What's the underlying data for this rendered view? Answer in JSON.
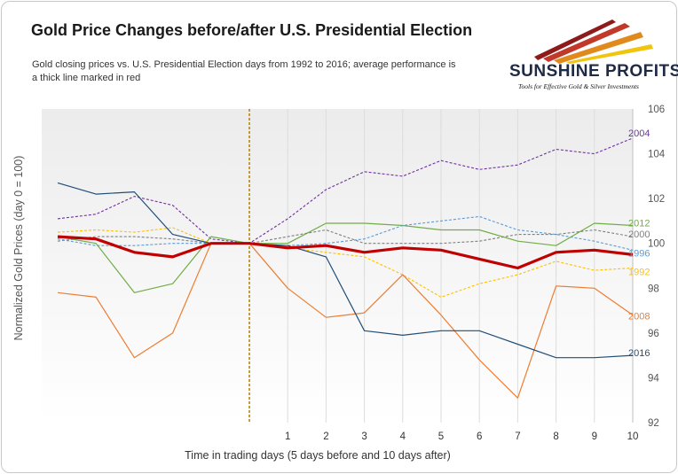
{
  "title": "Gold Price Changes before/after U.S. Presidential Election",
  "subtitle": "Gold closing prices vs. U.S. Presidential Election days from 1992 to 2016; average performance is a thick line marked in red",
  "logo": {
    "name": "SUNSHINE PROFITS",
    "tagline": "Tools for Effective Gold & Silver Investments",
    "icon": "sunshine-profits-logo"
  },
  "colors": {
    "average": "#c00000",
    "marker": "#b8860b"
  },
  "chart_data": {
    "type": "line",
    "title": "Gold Price Changes before/after U.S. Presidential Election",
    "xlabel": "Time in trading days (5 days before and 10 days after)",
    "ylabel": "Normalized Gold Prices (day 0 = 100)",
    "x": [
      -5,
      -4,
      -3,
      -2,
      -1,
      0,
      1,
      2,
      3,
      4,
      5,
      6,
      7,
      8,
      9,
      10
    ],
    "x_tick_labels": [
      "",
      "",
      "",
      "",
      "",
      "",
      "1",
      "2",
      "3",
      "4",
      "5",
      "6",
      "7",
      "8",
      "9",
      "10"
    ],
    "ylim": [
      92,
      106
    ],
    "y_ticks": [
      92,
      94,
      96,
      98,
      100,
      102,
      104,
      106
    ],
    "y_axis_side": "right",
    "grid": "vertical",
    "marker_line_x": 0,
    "series": [
      {
        "name": "2004",
        "color": "#7030a0",
        "style": "dashed",
        "label_at_end": true,
        "values": [
          101.1,
          101.3,
          102.1,
          101.7,
          100.2,
          100.0,
          101.1,
          102.4,
          103.2,
          103.0,
          103.7,
          103.3,
          103.5,
          104.2,
          104.0,
          104.7
        ]
      },
      {
        "name": "2012",
        "color": "#70ad47",
        "style": "solid",
        "label_at_end": true,
        "values": [
          100.3,
          100.0,
          97.8,
          98.2,
          100.3,
          100.0,
          100.0,
          100.9,
          100.9,
          100.8,
          100.6,
          100.6,
          100.1,
          99.9,
          100.9,
          100.8
        ]
      },
      {
        "name": "2000",
        "color": "#7f7f7f",
        "style": "dashed",
        "label_at_end": true,
        "values": [
          100.1,
          100.3,
          100.3,
          100.2,
          100.0,
          100.0,
          100.3,
          100.6,
          100.0,
          100.0,
          100.0,
          100.1,
          100.4,
          100.4,
          100.6,
          100.3
        ]
      },
      {
        "name": "1996",
        "color": "#5b9bd5",
        "style": "dashed",
        "label_at_end": true,
        "values": [
          100.2,
          99.9,
          99.9,
          100.0,
          100.0,
          100.0,
          99.9,
          100.0,
          100.2,
          100.8,
          101.0,
          101.2,
          100.6,
          100.4,
          100.1,
          99.7
        ]
      },
      {
        "name": "1992",
        "color": "#ffc000",
        "style": "dashed",
        "label_at_end": true,
        "values": [
          100.5,
          100.6,
          100.5,
          100.7,
          100.0,
          100.0,
          99.8,
          99.6,
          99.4,
          98.6,
          97.6,
          98.2,
          98.6,
          99.2,
          98.8,
          98.9
        ]
      },
      {
        "name": "2008",
        "color": "#ed7d31",
        "style": "solid",
        "label_at_end": true,
        "values": [
          97.8,
          97.6,
          94.9,
          96.0,
          100.0,
          100.0,
          98.0,
          96.7,
          96.9,
          98.6,
          96.8,
          94.8,
          93.1,
          98.1,
          98.0,
          96.8
        ]
      },
      {
        "name": "2016",
        "color": "#1f4e79",
        "style": "solid",
        "label_at_end": true,
        "values": [
          102.7,
          102.2,
          102.3,
          100.4,
          100.0,
          100.0,
          99.9,
          99.4,
          96.1,
          95.9,
          96.1,
          96.1,
          95.5,
          94.9,
          94.9,
          95.0
        ]
      },
      {
        "name": "",
        "color": "#c00000",
        "style": "thick",
        "label_at_end": false,
        "values": [
          100.3,
          100.2,
          99.6,
          99.4,
          100.0,
          100.0,
          99.8,
          99.9,
          99.6,
          99.8,
          99.7,
          99.3,
          98.9,
          99.6,
          99.7,
          99.5
        ]
      }
    ]
  }
}
